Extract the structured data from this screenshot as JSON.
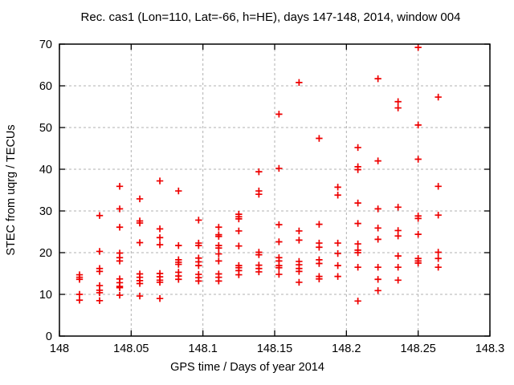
{
  "window": {
    "background": "#ffffff"
  },
  "chart_data": {
    "type": "scatter",
    "title": "Rec. cas1 (Lon=110, Lat=-66, h=HE), days 147-148, 2014, window 004",
    "xlabel": "GPS time / Days of year 2014",
    "ylabel": "STEC from uqrg / TECUs",
    "xlim": [
      148.0,
      148.3
    ],
    "ylim": [
      0,
      70
    ],
    "xtick_values": [
      148.0,
      148.05,
      148.1,
      148.15,
      148.2,
      148.25,
      148.3
    ],
    "xtick_labels": [
      "148",
      "148.05",
      "148.1",
      "148.15",
      "148.2",
      "148.25",
      "148.3"
    ],
    "ytick_values": [
      0,
      10,
      20,
      30,
      40,
      50,
      60,
      70
    ],
    "ytick_labels": [
      "0",
      "10",
      "20",
      "30",
      "40",
      "50",
      "60",
      "70"
    ],
    "grid": "dashed",
    "legend_position": "none",
    "marker_shape": "plus",
    "marker_color": "#ee0000",
    "grid_color": "#b0b0b0",
    "axis_color": "#000000",
    "points": [
      [
        148.014,
        14.7
      ],
      [
        148.014,
        14.1
      ],
      [
        148.014,
        13.6
      ],
      [
        148.014,
        10.0
      ],
      [
        148.014,
        8.6
      ],
      [
        148.028,
        28.9
      ],
      [
        148.028,
        20.3
      ],
      [
        148.028,
        16.2
      ],
      [
        148.028,
        15.5
      ],
      [
        148.028,
        12.1
      ],
      [
        148.028,
        11.0
      ],
      [
        148.028,
        10.4
      ],
      [
        148.028,
        8.5
      ],
      [
        148.042,
        35.9
      ],
      [
        148.042,
        30.5
      ],
      [
        148.042,
        26.1
      ],
      [
        148.042,
        19.9
      ],
      [
        148.042,
        18.8
      ],
      [
        148.042,
        18.0
      ],
      [
        148.042,
        13.7
      ],
      [
        148.042,
        12.8
      ],
      [
        148.042,
        11.9
      ],
      [
        148.042,
        11.6
      ],
      [
        148.042,
        9.8
      ],
      [
        148.056,
        32.9
      ],
      [
        148.056,
        27.6
      ],
      [
        148.056,
        27.1
      ],
      [
        148.056,
        22.4
      ],
      [
        148.056,
        14.9
      ],
      [
        148.056,
        14.1
      ],
      [
        148.056,
        13.3
      ],
      [
        148.056,
        12.6
      ],
      [
        148.056,
        9.6
      ],
      [
        148.07,
        37.2
      ],
      [
        148.07,
        25.7
      ],
      [
        148.07,
        23.6
      ],
      [
        148.07,
        21.9
      ],
      [
        148.07,
        15.0
      ],
      [
        148.07,
        14.2
      ],
      [
        148.07,
        13.4
      ],
      [
        148.07,
        12.9
      ],
      [
        148.07,
        9.0
      ],
      [
        148.083,
        34.8
      ],
      [
        148.083,
        21.7
      ],
      [
        148.083,
        18.3
      ],
      [
        148.083,
        17.7
      ],
      [
        148.083,
        17.2
      ],
      [
        148.083,
        15.3
      ],
      [
        148.083,
        14.4
      ],
      [
        148.083,
        13.6
      ],
      [
        148.097,
        27.8
      ],
      [
        148.097,
        22.3
      ],
      [
        148.097,
        21.7
      ],
      [
        148.097,
        18.7
      ],
      [
        148.097,
        17.8
      ],
      [
        148.097,
        16.9
      ],
      [
        148.097,
        14.8
      ],
      [
        148.097,
        14.0
      ],
      [
        148.097,
        13.2
      ],
      [
        148.111,
        26.1
      ],
      [
        148.111,
        24.3
      ],
      [
        148.111,
        23.9
      ],
      [
        148.111,
        21.7
      ],
      [
        148.111,
        21.1
      ],
      [
        148.111,
        19.7
      ],
      [
        148.111,
        18.0
      ],
      [
        148.111,
        14.9
      ],
      [
        148.111,
        14.1
      ],
      [
        148.111,
        13.2
      ],
      [
        148.125,
        29.2
      ],
      [
        148.125,
        28.6
      ],
      [
        148.125,
        28.1
      ],
      [
        148.125,
        25.2
      ],
      [
        148.125,
        21.6
      ],
      [
        148.125,
        16.9
      ],
      [
        148.125,
        16.4
      ],
      [
        148.125,
        15.7
      ],
      [
        148.125,
        14.7
      ],
      [
        148.139,
        39.4
      ],
      [
        148.139,
        34.8
      ],
      [
        148.139,
        34.0
      ],
      [
        148.139,
        20.1
      ],
      [
        148.139,
        19.5
      ],
      [
        148.139,
        17.0
      ],
      [
        148.139,
        16.2
      ],
      [
        148.139,
        15.4
      ],
      [
        148.153,
        53.2
      ],
      [
        148.153,
        40.2
      ],
      [
        148.153,
        26.7
      ],
      [
        148.153,
        22.6
      ],
      [
        148.153,
        18.8
      ],
      [
        148.153,
        18.0
      ],
      [
        148.153,
        16.9
      ],
      [
        148.153,
        16.4
      ],
      [
        148.153,
        14.8
      ],
      [
        148.167,
        60.8
      ],
      [
        148.167,
        25.2
      ],
      [
        148.167,
        23.0
      ],
      [
        148.167,
        17.9
      ],
      [
        148.167,
        17.1
      ],
      [
        148.167,
        16.2
      ],
      [
        148.167,
        15.5
      ],
      [
        148.167,
        12.9
      ],
      [
        148.181,
        47.4
      ],
      [
        148.181,
        26.8
      ],
      [
        148.181,
        22.3
      ],
      [
        148.181,
        21.3
      ],
      [
        148.181,
        18.3
      ],
      [
        148.181,
        17.4
      ],
      [
        148.181,
        14.3
      ],
      [
        148.181,
        13.7
      ],
      [
        148.194,
        35.7
      ],
      [
        148.194,
        33.8
      ],
      [
        148.194,
        22.3
      ],
      [
        148.194,
        19.8
      ],
      [
        148.194,
        16.9
      ],
      [
        148.194,
        14.3
      ],
      [
        148.208,
        45.2
      ],
      [
        148.208,
        40.6
      ],
      [
        148.208,
        39.9
      ],
      [
        148.208,
        31.9
      ],
      [
        148.208,
        27.0
      ],
      [
        148.208,
        22.1
      ],
      [
        148.208,
        20.6
      ],
      [
        148.208,
        20.0
      ],
      [
        148.208,
        16.5
      ],
      [
        148.208,
        8.4
      ],
      [
        148.222,
        61.7
      ],
      [
        148.222,
        42.0
      ],
      [
        148.222,
        30.5
      ],
      [
        148.222,
        25.9
      ],
      [
        148.222,
        23.2
      ],
      [
        148.222,
        16.5
      ],
      [
        148.222,
        13.6
      ],
      [
        148.222,
        10.9
      ],
      [
        148.236,
        56.2
      ],
      [
        148.236,
        54.7
      ],
      [
        148.236,
        30.9
      ],
      [
        148.236,
        25.3
      ],
      [
        148.236,
        24.0
      ],
      [
        148.236,
        19.2
      ],
      [
        148.236,
        16.5
      ],
      [
        148.236,
        13.4
      ],
      [
        148.25,
        69.2
      ],
      [
        148.25,
        50.6
      ],
      [
        148.25,
        42.4
      ],
      [
        148.25,
        28.8
      ],
      [
        148.25,
        28.2
      ],
      [
        148.25,
        24.4
      ],
      [
        148.25,
        18.6
      ],
      [
        148.25,
        18.0
      ],
      [
        148.25,
        17.5
      ],
      [
        148.264,
        57.3
      ],
      [
        148.264,
        35.9
      ],
      [
        148.264,
        29.0
      ],
      [
        148.264,
        20.1
      ],
      [
        148.264,
        18.6
      ],
      [
        148.264,
        16.5
      ]
    ]
  }
}
